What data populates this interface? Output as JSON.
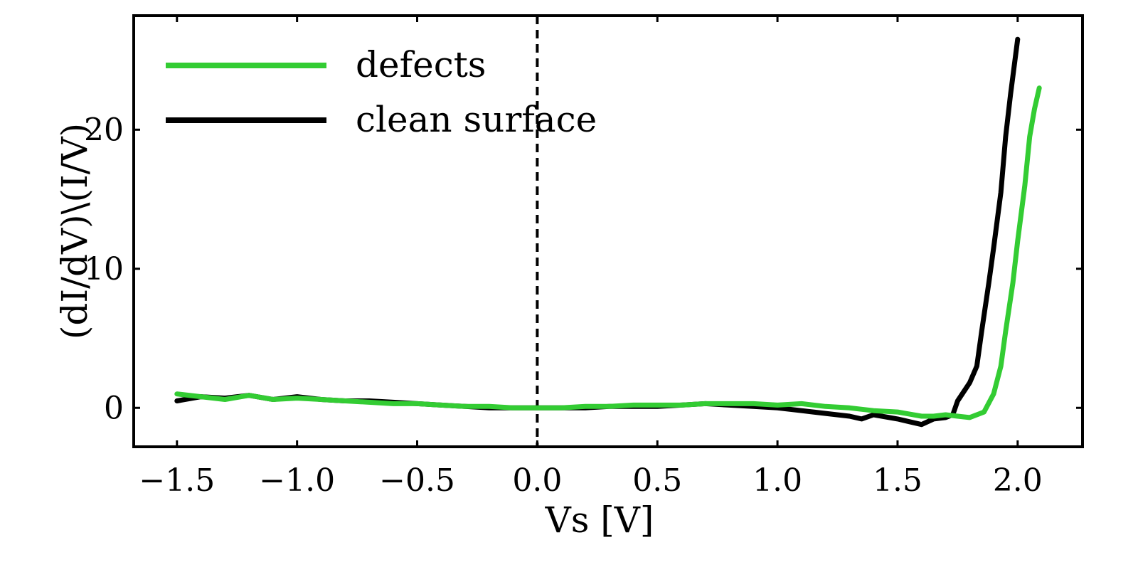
{
  "chart_data": {
    "type": "line",
    "title": "",
    "xlabel": "Vs [V]",
    "ylabel": "(dI/dV)\\(I/V)",
    "xlim": [
      -1.68,
      2.27
    ],
    "ylim": [
      -2.8,
      28.2
    ],
    "xticks": [
      -1.5,
      -1.0,
      -0.5,
      0.0,
      0.5,
      1.0,
      1.5,
      2.0
    ],
    "xtick_labels": [
      "−1.5",
      "−1.0",
      "−0.5",
      "0.0",
      "0.5",
      "1.0",
      "1.5",
      "2.0"
    ],
    "yticks": [
      0,
      10,
      20
    ],
    "ytick_labels": [
      "0",
      "10",
      "20"
    ],
    "grid": false,
    "legend_position": "top-left",
    "reference_line": {
      "x": 0.0,
      "style": "dashed",
      "color": "#000000"
    },
    "series": [
      {
        "name": "clean surface",
        "color": "#000000",
        "x": [
          -1.5,
          -1.4,
          -1.3,
          -1.2,
          -1.1,
          -1.0,
          -0.9,
          -0.8,
          -0.7,
          -0.6,
          -0.5,
          -0.4,
          -0.3,
          -0.2,
          -0.1,
          0.0,
          0.1,
          0.2,
          0.3,
          0.4,
          0.5,
          0.6,
          0.7,
          0.8,
          0.9,
          1.0,
          1.1,
          1.2,
          1.3,
          1.35,
          1.4,
          1.5,
          1.55,
          1.6,
          1.65,
          1.7,
          1.73,
          1.75,
          1.8,
          1.83,
          1.85,
          1.88,
          1.9,
          1.93,
          1.95,
          1.97,
          2.0
        ],
        "y": [
          0.5,
          0.8,
          0.7,
          0.9,
          0.6,
          0.8,
          0.6,
          0.5,
          0.5,
          0.4,
          0.3,
          0.2,
          0.1,
          0.0,
          0.0,
          0.0,
          0.0,
          0.0,
          0.1,
          0.1,
          0.1,
          0.2,
          0.3,
          0.2,
          0.1,
          0.0,
          -0.2,
          -0.4,
          -0.6,
          -0.8,
          -0.5,
          -0.8,
          -1.0,
          -1.2,
          -0.8,
          -0.7,
          -0.5,
          0.5,
          1.8,
          3.0,
          5.5,
          9.0,
          11.5,
          15.5,
          19.5,
          22.5,
          26.5
        ]
      },
      {
        "name": "defects",
        "color": "#33cc33",
        "x": [
          -1.5,
          -1.4,
          -1.3,
          -1.2,
          -1.1,
          -1.0,
          -0.9,
          -0.8,
          -0.7,
          -0.6,
          -0.5,
          -0.4,
          -0.3,
          -0.2,
          -0.1,
          0.0,
          0.1,
          0.2,
          0.3,
          0.4,
          0.5,
          0.6,
          0.7,
          0.8,
          0.9,
          1.0,
          1.1,
          1.2,
          1.3,
          1.4,
          1.5,
          1.6,
          1.65,
          1.7,
          1.75,
          1.8,
          1.83,
          1.86,
          1.9,
          1.93,
          1.95,
          1.98,
          2.0,
          2.03,
          2.05,
          2.07,
          2.09
        ],
        "y": [
          1.0,
          0.8,
          0.6,
          0.9,
          0.6,
          0.7,
          0.6,
          0.5,
          0.4,
          0.3,
          0.3,
          0.2,
          0.1,
          0.1,
          0.0,
          0.0,
          0.0,
          0.1,
          0.1,
          0.2,
          0.2,
          0.2,
          0.3,
          0.3,
          0.3,
          0.2,
          0.3,
          0.1,
          0.0,
          -0.2,
          -0.3,
          -0.6,
          -0.6,
          -0.5,
          -0.6,
          -0.7,
          -0.5,
          -0.3,
          1.0,
          3.0,
          5.5,
          9.0,
          12.0,
          16.0,
          19.5,
          21.5,
          23.0
        ]
      }
    ]
  }
}
